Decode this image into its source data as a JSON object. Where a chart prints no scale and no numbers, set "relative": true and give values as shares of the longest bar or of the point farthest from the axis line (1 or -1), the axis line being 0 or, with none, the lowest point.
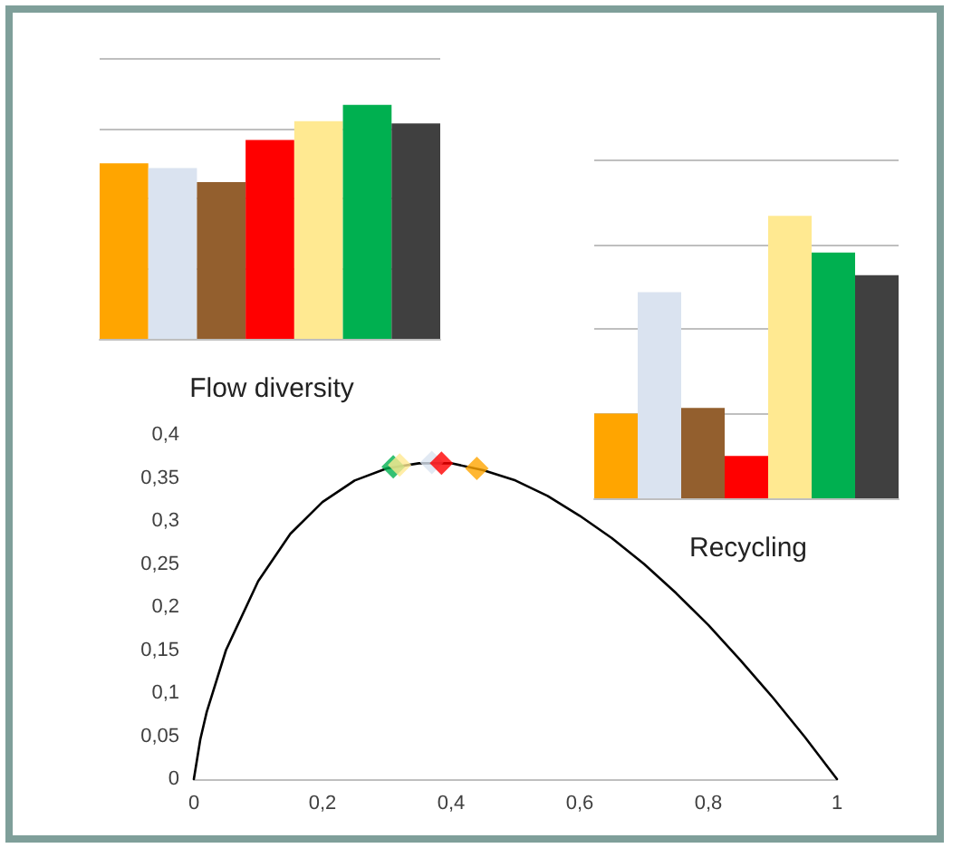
{
  "chart_data": [
    {
      "type": "bar",
      "title": "Flow diversity",
      "relative": true,
      "grid": "y",
      "categories": [
        null,
        null,
        null,
        null,
        null,
        null,
        null
      ],
      "values": [
        0.75,
        0.73,
        0.67,
        0.85,
        0.93,
        1,
        0.92
      ],
      "colors": [
        "#ffa500",
        "#dae3f0",
        "#935f2e",
        "#ff0000",
        "#ffe991",
        "#00b050",
        "#404040"
      ]
    },
    {
      "type": "bar",
      "title": "Recycling",
      "relative": true,
      "grid": "y",
      "categories": [
        null,
        null,
        null,
        null,
        null,
        null,
        null
      ],
      "values": [
        0.3,
        0.73,
        0.32,
        0.15,
        1,
        0.87,
        0.79
      ],
      "colors": [
        "#ffa500",
        "#dae3f0",
        "#935f2e",
        "#ff0000",
        "#ffe991",
        "#00b050",
        "#404040"
      ]
    },
    {
      "type": "line",
      "xlim": [
        0,
        1
      ],
      "ylim": [
        0,
        0.4
      ],
      "grid": false,
      "xticks": [
        0,
        {
          "value": 0.2,
          "label": "0,2"
        },
        {
          "value": 0.4,
          "label": "0,4"
        },
        {
          "value": 0.6,
          "label": "0,6"
        },
        {
          "value": 0.8,
          "label": "0,8"
        },
        1
      ],
      "yticks": [
        0,
        {
          "value": 0.05,
          "label": "0,05"
        },
        {
          "value": 0.1,
          "label": "0,1"
        },
        {
          "value": 0.15,
          "label": "0,15"
        },
        {
          "value": 0.2,
          "label": "0,2"
        },
        {
          "value": 0.25,
          "label": "0,25"
        },
        {
          "value": 0.3,
          "label": "0,3"
        },
        {
          "value": 0.35,
          "label": "0,35"
        },
        {
          "value": 0.4,
          "label": "0,4"
        }
      ],
      "series": [
        {
          "type": "line",
          "color": "#000000",
          "marker": "none",
          "line_style": "solid",
          "x": [
            0,
            0.01,
            0.02,
            0.05,
            0.1,
            0.15,
            0.2,
            0.25,
            0.3,
            0.35,
            0.4,
            0.45,
            0.5,
            0.55,
            0.6,
            0.65,
            0.7,
            0.75,
            0.8,
            0.85,
            0.9,
            0.95,
            1
          ],
          "values": [
            0,
            0.046,
            0.078,
            0.15,
            0.23,
            0.285,
            0.322,
            0.347,
            0.361,
            0.367,
            0.367,
            0.359,
            0.347,
            0.329,
            0.306,
            0.28,
            0.25,
            0.216,
            0.179,
            0.138,
            0.095,
            0.049,
            0
          ]
        },
        {
          "type": "scatter",
          "marker": "diamond",
          "x": [
            0.31,
            0.32,
            0.37,
            0.385,
            0.44
          ],
          "values": [
            0.363,
            0.365,
            0.368,
            0.367,
            0.361
          ],
          "colors": [
            "#00b050",
            "#ffe991",
            "#dae3f0",
            "#ff0000",
            "#ffa500"
          ]
        }
      ]
    }
  ]
}
